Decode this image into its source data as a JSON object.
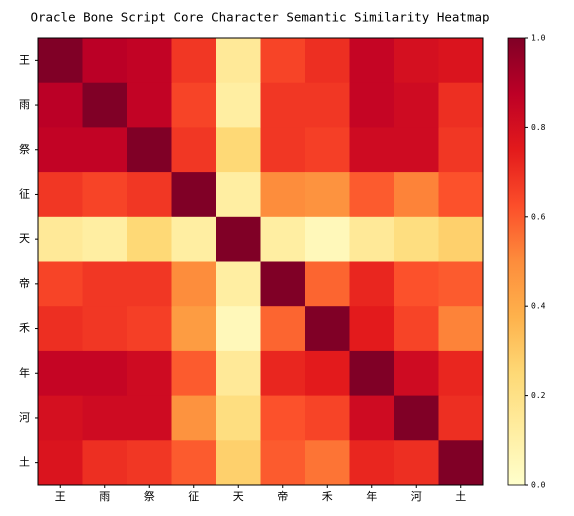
{
  "chart_data": {
    "type": "heatmap",
    "title": "Oracle Bone Script Core Character Semantic Similarity Heatmap",
    "categories": [
      "王",
      "雨",
      "祭",
      "征",
      "天",
      "帝",
      "禾",
      "年",
      "河",
      "土"
    ],
    "values": [
      [
        1.0,
        0.88,
        0.86,
        0.68,
        0.15,
        0.65,
        0.7,
        0.85,
        0.8,
        0.78
      ],
      [
        0.88,
        1.0,
        0.86,
        0.65,
        0.12,
        0.68,
        0.68,
        0.85,
        0.82,
        0.7
      ],
      [
        0.86,
        0.86,
        1.0,
        0.68,
        0.25,
        0.68,
        0.66,
        0.82,
        0.82,
        0.68
      ],
      [
        0.68,
        0.65,
        0.68,
        1.0,
        0.12,
        0.5,
        0.48,
        0.6,
        0.52,
        0.62
      ],
      [
        0.15,
        0.12,
        0.25,
        0.12,
        1.0,
        0.12,
        0.05,
        0.15,
        0.22,
        0.28
      ],
      [
        0.65,
        0.68,
        0.68,
        0.5,
        0.12,
        1.0,
        0.58,
        0.72,
        0.62,
        0.6
      ],
      [
        0.7,
        0.68,
        0.66,
        0.45,
        0.05,
        0.58,
        1.0,
        0.75,
        0.65,
        0.52
      ],
      [
        0.85,
        0.85,
        0.82,
        0.6,
        0.15,
        0.72,
        0.75,
        1.0,
        0.82,
        0.72
      ],
      [
        0.8,
        0.82,
        0.82,
        0.48,
        0.22,
        0.62,
        0.65,
        0.82,
        1.0,
        0.7
      ],
      [
        0.78,
        0.7,
        0.68,
        0.6,
        0.28,
        0.6,
        0.55,
        0.72,
        0.7,
        1.0
      ]
    ],
    "colormap": "YlOrRd",
    "clim": [
      0,
      1
    ],
    "cticks": [
      {
        "value": 0,
        "label": "0.0"
      },
      {
        "value": 0.2,
        "label": "0.2"
      },
      {
        "value": 0.4,
        "label": "0.4"
      },
      {
        "value": 0.6,
        "label": "0.6"
      },
      {
        "value": 0.8,
        "label": "0.8"
      },
      {
        "value": 1,
        "label": "1.0"
      }
    ]
  }
}
